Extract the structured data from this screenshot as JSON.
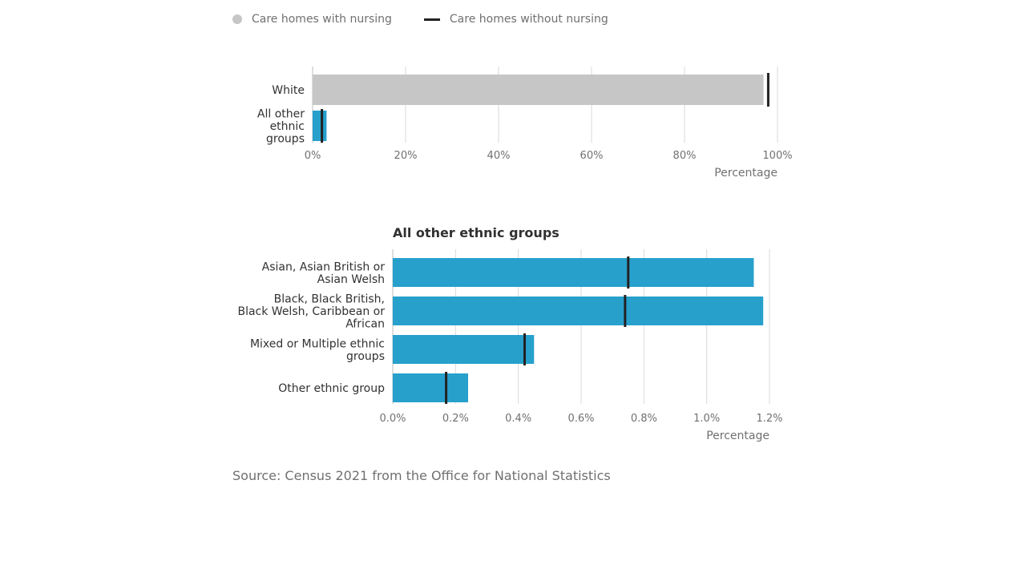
{
  "legend": {
    "nursing_label": "Care homes with nursing",
    "without_nursing_label": "Care homes without nursing"
  },
  "colors": {
    "nursing_white": "#c6c6c6",
    "nursing_other": "#27a0cc",
    "without_nursing_marker": "#222222",
    "grid": "#d9d9d9",
    "axis": "#bdbdbd"
  },
  "chart_data": [
    {
      "type": "bar",
      "orientation": "horizontal",
      "title": "",
      "categories": [
        "White",
        "All other ethnic groups"
      ],
      "series": [
        {
          "name": "Care homes with nursing",
          "values": [
            97.0,
            3.0
          ],
          "mark": "bar"
        },
        {
          "name": "Care homes without nursing",
          "values": [
            98.0,
            2.0
          ],
          "mark": "tick"
        }
      ],
      "xlabel": "Percentage",
      "xlim": [
        0,
        100
      ],
      "xticks": [
        "0%",
        "20%",
        "40%",
        "60%",
        "80%",
        "100%"
      ],
      "grid": true
    },
    {
      "type": "bar",
      "orientation": "horizontal",
      "title": "All other ethnic groups",
      "categories": [
        "Asian, Asian British or Asian Welsh",
        "Black, Black British, Black Welsh, Caribbean or African",
        "Mixed or Multiple ethnic groups",
        "Other ethnic group"
      ],
      "series": [
        {
          "name": "Care homes with nursing",
          "values": [
            1.15,
            1.18,
            0.45,
            0.24
          ],
          "mark": "bar"
        },
        {
          "name": "Care homes without nursing",
          "values": [
            0.75,
            0.74,
            0.42,
            0.17
          ],
          "mark": "tick"
        }
      ],
      "xlabel": "Percentage",
      "xlim": [
        0,
        1.2
      ],
      "xticks": [
        "0.0%",
        "0.2%",
        "0.4%",
        "0.6%",
        "0.8%",
        "1.0%",
        "1.2%"
      ],
      "grid": true
    }
  ],
  "source": "Source: Census 2021 from the Office for National Statistics"
}
